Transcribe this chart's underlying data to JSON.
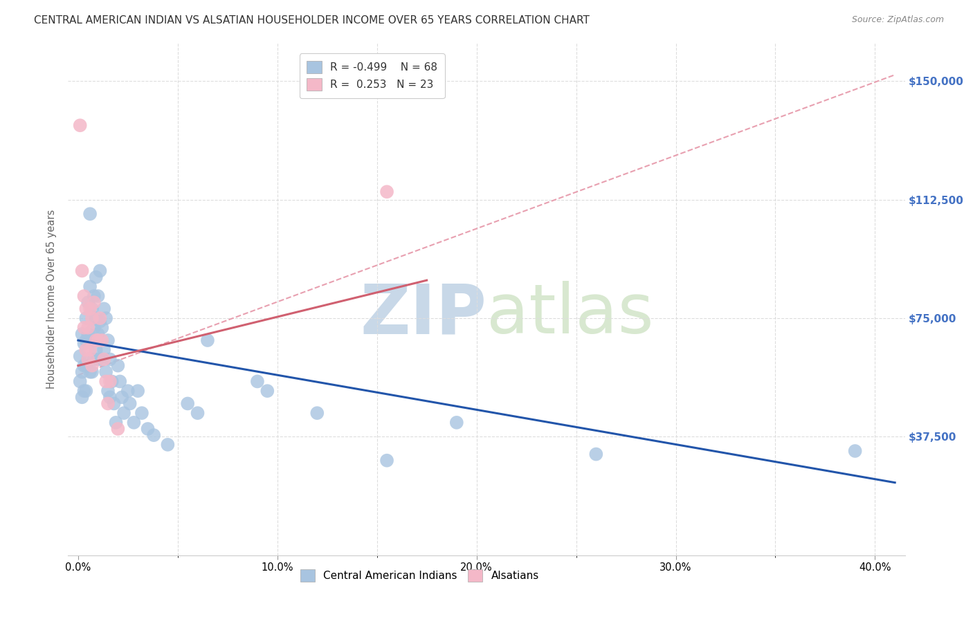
{
  "title": "CENTRAL AMERICAN INDIAN VS ALSATIAN HOUSEHOLDER INCOME OVER 65 YEARS CORRELATION CHART",
  "source": "Source: ZipAtlas.com",
  "ylabel": "Householder Income Over 65 years",
  "xlabel_ticks": [
    "0.0%",
    "",
    "",
    "",
    "",
    "10.0%",
    "",
    "",
    "",
    "",
    "20.0%",
    "",
    "",
    "",
    "",
    "30.0%",
    "",
    "",
    "",
    "",
    "40.0%"
  ],
  "xlabel_vals": [
    0.0,
    0.02,
    0.04,
    0.06,
    0.08,
    0.1,
    0.12,
    0.14,
    0.16,
    0.18,
    0.2,
    0.22,
    0.24,
    0.26,
    0.28,
    0.3,
    0.32,
    0.34,
    0.36,
    0.38,
    0.4
  ],
  "xlabel_major": [
    0.0,
    0.1,
    0.2,
    0.3,
    0.4
  ],
  "xlabel_minor": [
    0.05,
    0.1,
    0.15,
    0.2,
    0.25,
    0.3,
    0.35,
    0.4
  ],
  "ylabel_ticks": [
    "$37,500",
    "$75,000",
    "$112,500",
    "$150,000"
  ],
  "ylabel_vals": [
    37500,
    75000,
    112500,
    150000
  ],
  "ylim": [
    0,
    162000
  ],
  "xlim": [
    -0.005,
    0.415
  ],
  "blue_R": "-0.499",
  "blue_N": "68",
  "pink_R": "0.253",
  "pink_N": "23",
  "watermark_zip": "ZIP",
  "watermark_atlas": "atlas",
  "blue_scatter_x": [
    0.001,
    0.001,
    0.002,
    0.002,
    0.002,
    0.003,
    0.003,
    0.003,
    0.004,
    0.004,
    0.004,
    0.004,
    0.005,
    0.005,
    0.005,
    0.006,
    0.006,
    0.006,
    0.006,
    0.007,
    0.007,
    0.007,
    0.008,
    0.008,
    0.008,
    0.009,
    0.009,
    0.009,
    0.01,
    0.01,
    0.01,
    0.011,
    0.011,
    0.012,
    0.012,
    0.013,
    0.013,
    0.014,
    0.014,
    0.015,
    0.015,
    0.016,
    0.016,
    0.017,
    0.018,
    0.019,
    0.02,
    0.021,
    0.022,
    0.023,
    0.025,
    0.026,
    0.028,
    0.03,
    0.032,
    0.035,
    0.038,
    0.045,
    0.055,
    0.06,
    0.065,
    0.09,
    0.095,
    0.12,
    0.155,
    0.19,
    0.26,
    0.39
  ],
  "blue_scatter_y": [
    63000,
    55000,
    70000,
    58000,
    50000,
    67000,
    60000,
    52000,
    75000,
    68000,
    60000,
    52000,
    80000,
    70000,
    62000,
    108000,
    85000,
    68000,
    58000,
    78000,
    68000,
    58000,
    82000,
    72000,
    62000,
    88000,
    75000,
    65000,
    82000,
    70000,
    62000,
    90000,
    74000,
    72000,
    62000,
    78000,
    65000,
    75000,
    58000,
    68000,
    52000,
    62000,
    50000,
    55000,
    48000,
    42000,
    60000,
    55000,
    50000,
    45000,
    52000,
    48000,
    42000,
    52000,
    45000,
    40000,
    38000,
    35000,
    48000,
    45000,
    68000,
    55000,
    52000,
    45000,
    30000,
    42000,
    32000,
    33000
  ],
  "pink_scatter_x": [
    0.001,
    0.002,
    0.003,
    0.003,
    0.004,
    0.004,
    0.005,
    0.005,
    0.006,
    0.006,
    0.007,
    0.007,
    0.008,
    0.009,
    0.01,
    0.011,
    0.012,
    0.013,
    0.014,
    0.015,
    0.016,
    0.155,
    0.02
  ],
  "pink_scatter_y": [
    136000,
    90000,
    82000,
    72000,
    78000,
    65000,
    72000,
    62000,
    78000,
    65000,
    75000,
    60000,
    80000,
    68000,
    68000,
    75000,
    68000,
    62000,
    55000,
    48000,
    55000,
    115000,
    40000
  ],
  "blue_line_x": [
    0.0,
    0.41
  ],
  "blue_line_y": [
    68000,
    23000
  ],
  "pink_line_x": [
    0.0,
    0.175
  ],
  "pink_line_y": [
    60000,
    87000
  ],
  "pink_dash_line_x": [
    0.0,
    0.41
  ],
  "pink_dash_line_y": [
    57000,
    152000
  ],
  "blue_color": "#a8c4e0",
  "pink_color": "#f4b8c8",
  "blue_line_color": "#2255aa",
  "pink_line_color": "#d06070",
  "pink_dash_color": "#e8a0b0",
  "title_color": "#333333",
  "axis_label_color": "#666666",
  "right_tick_color": "#4472c4",
  "grid_color": "#dddddd",
  "watermark_color": "#c8d8e8"
}
